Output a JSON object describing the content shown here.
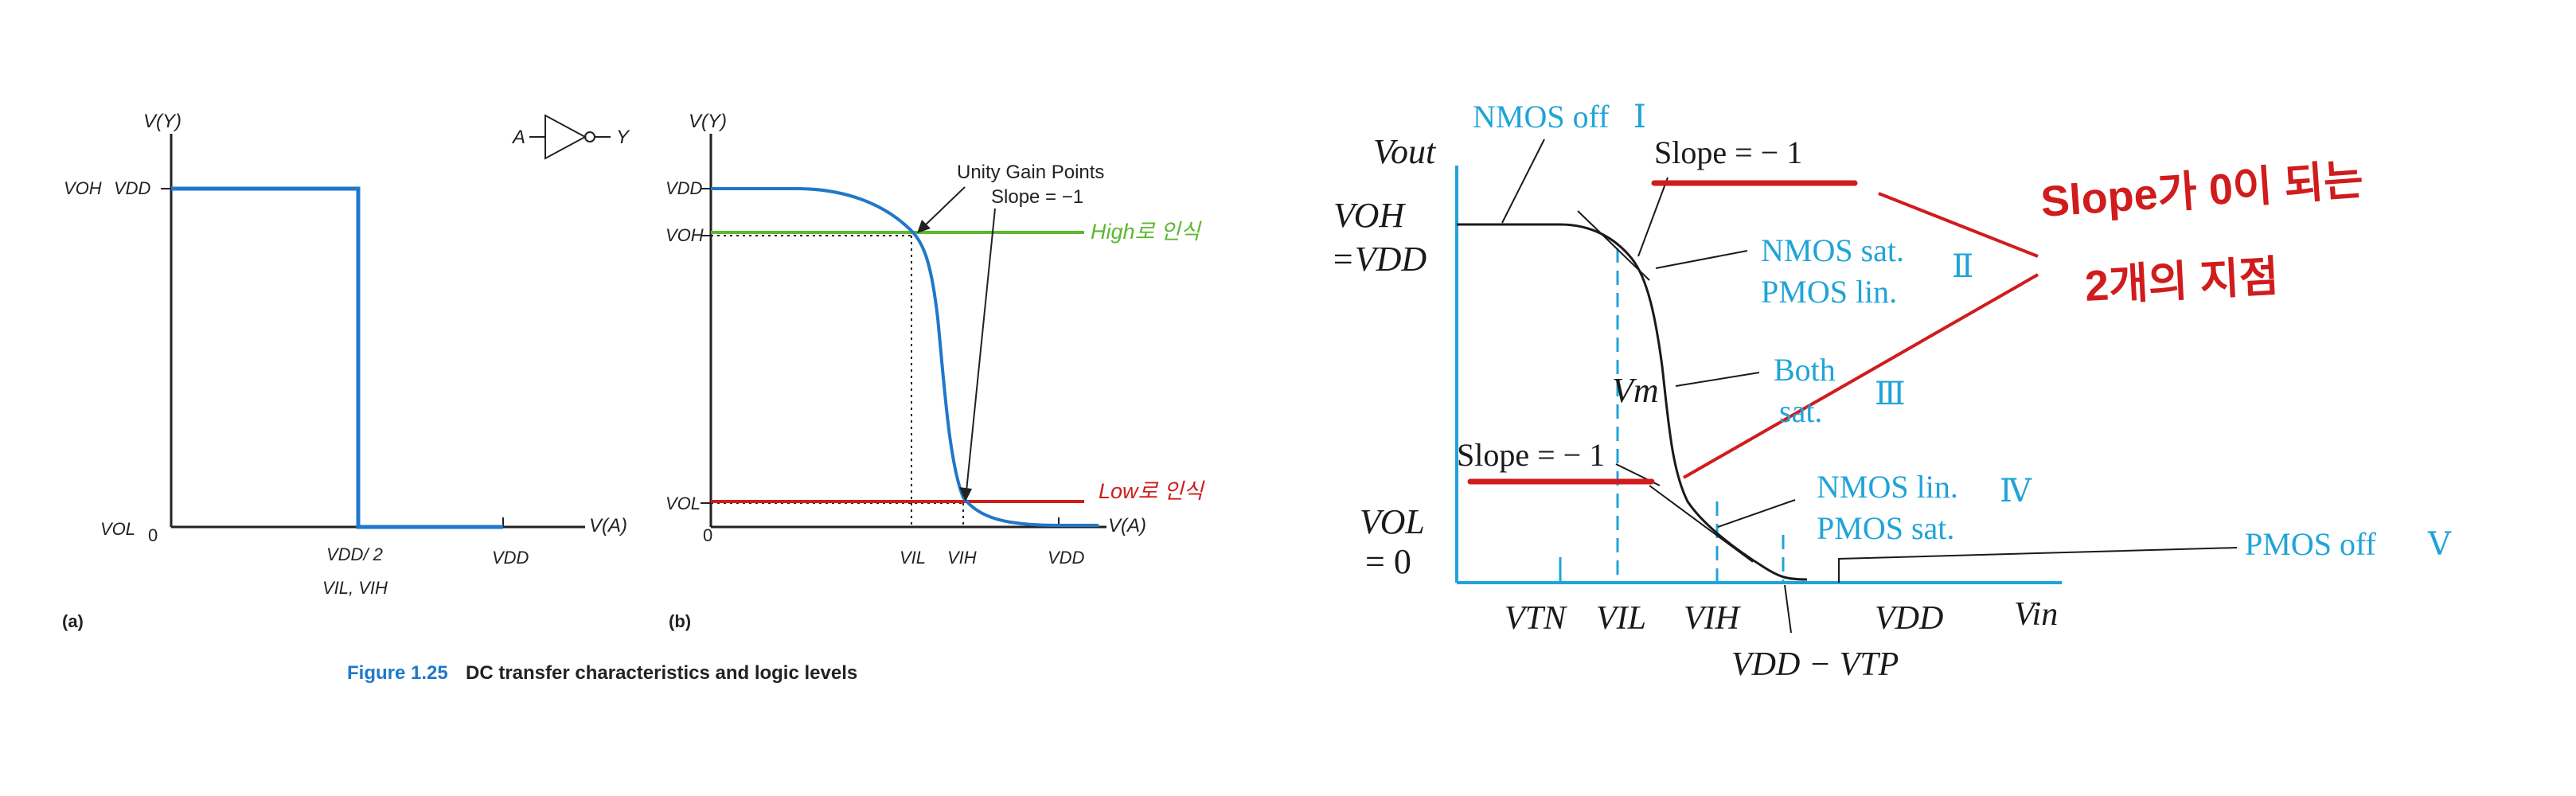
{
  "left_figure": {
    "panel_a": {
      "y_axis_label": "V(Y)",
      "x_axis_label": "V(A)",
      "origin_label": "0",
      "voh_label": "VOH",
      "vdd_label": "VDD",
      "vol_label": "VOL",
      "x_mid_label": "VDD/ 2",
      "x_mid_sub_label": "VIL, VIH",
      "x_end_label": "VDD",
      "gate_input": "A",
      "gate_output": "Y",
      "caption": "(a)"
    },
    "panel_b": {
      "y_axis_label": "V(Y)",
      "x_axis_label": "V(A)",
      "origin_label": "0",
      "vdd_label": "VDD",
      "voh_label": "VOH",
      "vol_label": "VOL",
      "vil_label": "VIL",
      "vih_label": "VIH",
      "x_end_label": "VDD",
      "unity_gain_label": "Unity Gain Points",
      "slope_label": "Slope = −1",
      "high_note": "High로 인식",
      "low_note": "Low로 인식",
      "caption": "(b)"
    },
    "figure_number": "Figure 1.25",
    "figure_title": "DC transfer characteristics and logic levels"
  },
  "right_figure": {
    "y_axis_label": "Vout",
    "voh_label": "VOH",
    "vdd_eq_label": "=VDD",
    "vol_label": "VOL",
    "zero_eq_label": "= 0",
    "x_labels": {
      "vtn": "VTN",
      "vil": "VIL",
      "vih": "VIH",
      "vdd": "VDD",
      "vin": "Vin",
      "vdd_minus_vtp": "VDD − VTP"
    },
    "vm_label": "Vm",
    "slope_top": "Slope = − 1",
    "slope_bottom": "Slope = − 1",
    "regions": {
      "r1": "NMOS off",
      "r1_num": "Ⅰ",
      "r2_a": "NMOS sat.",
      "r2_b": "PMOS lin.",
      "r2_num": "Ⅱ",
      "r3_a": "Both",
      "r3_b": "sat.",
      "r3_num": "Ⅲ",
      "r4_a": "NMOS lin.",
      "r4_b": "PMOS sat.",
      "r4_num": "Ⅳ",
      "r5": "PMOS off",
      "r5_num": "Ⅴ"
    },
    "handwritten_note_1": "Slope가 0이 되는",
    "handwritten_note_2": "2개의 지점"
  },
  "colors": {
    "blue": "#1f78c8",
    "cyan": "#20a4d8",
    "green": "#5cb82e",
    "red": "#d01c1c",
    "black": "#1a1a1a"
  }
}
